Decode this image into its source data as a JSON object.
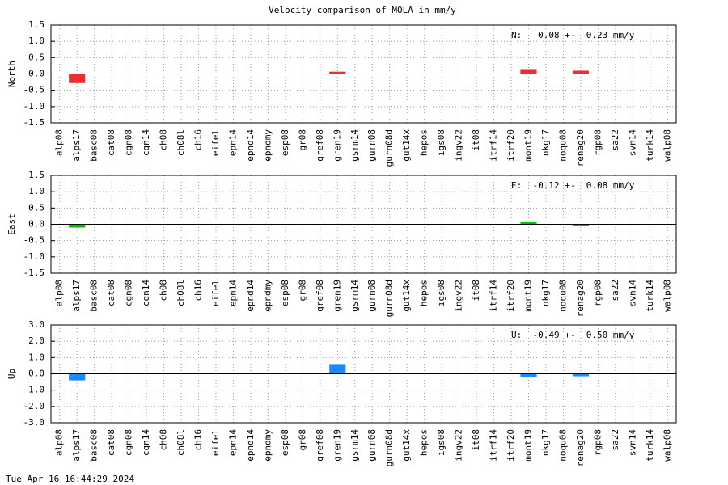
{
  "title": "Velocity comparison of MOLA in mm/y",
  "footer": "Tue Apr 16 16:44:29 2024",
  "chart_data": [
    {
      "type": "bar",
      "y_label": "North",
      "annotation": "N:   0.08 +-  0.23 mm/y",
      "color": "#e83030",
      "grid": true,
      "categories": [
        "alp08",
        "alps17",
        "basc08",
        "cat08",
        "cgn08",
        "cgn14",
        "ch08",
        "ch08l",
        "ch16",
        "eifel",
        "epn14",
        "epnd14",
        "epndmy",
        "esp08",
        "gr08",
        "gref08",
        "gren19",
        "gsrm14",
        "gurn08",
        "gurn08d",
        "gut14x",
        "hepos",
        "igs08",
        "ingv22",
        "it08",
        "itrf14",
        "itrf20",
        "mont19",
        "nkg17",
        "noqu08",
        "renag20",
        "rgp08",
        "sa22",
        "svn14",
        "turk14",
        "walp08"
      ],
      "values": [
        null,
        -0.28,
        null,
        null,
        null,
        null,
        null,
        null,
        null,
        null,
        null,
        null,
        null,
        null,
        null,
        null,
        0.07,
        null,
        null,
        null,
        null,
        null,
        null,
        null,
        null,
        null,
        null,
        0.15,
        null,
        null,
        0.1,
        null,
        null,
        null,
        null,
        null
      ],
      "ylim": [
        -1.5,
        1.5
      ],
      "yticks": [
        1.5,
        {
          "value": 1,
          "label": "1.0"
        },
        0.5,
        {
          "value": 0,
          "label": "0.0"
        },
        -0.5,
        {
          "value": -1,
          "label": "-1.0"
        },
        -1.5
      ]
    },
    {
      "type": "bar",
      "y_label": "East",
      "annotation": "E:  -0.12 +-  0.08 mm/y",
      "color": "#00c000",
      "grid": true,
      "categories": [
        "alp08",
        "alps17",
        "basc08",
        "cat08",
        "cgn08",
        "cgn14",
        "ch08",
        "ch08l",
        "ch16",
        "eifel",
        "epn14",
        "epnd14",
        "epndmy",
        "esp08",
        "gr08",
        "gref08",
        "gren19",
        "gsrm14",
        "gurn08",
        "gurn08d",
        "gut14x",
        "hepos",
        "igs08",
        "ingv22",
        "it08",
        "itrf14",
        "itrf20",
        "mont19",
        "nkg17",
        "noqu08",
        "renag20",
        "rgp08",
        "sa22",
        "svn14",
        "turk14",
        "walp08"
      ],
      "values": [
        null,
        -0.1,
        null,
        null,
        null,
        null,
        null,
        null,
        null,
        null,
        null,
        null,
        null,
        null,
        null,
        null,
        null,
        null,
        null,
        null,
        null,
        null,
        null,
        null,
        null,
        null,
        null,
        0.06,
        null,
        null,
        -0.04,
        null,
        null,
        null,
        null,
        null
      ],
      "ylim": [
        -1.5,
        1.5
      ],
      "yticks": [
        1.5,
        {
          "value": 1,
          "label": "1.0"
        },
        0.5,
        {
          "value": 0,
          "label": "0.0"
        },
        -0.5,
        {
          "value": -1,
          "label": "-1.0"
        },
        -1.5
      ]
    },
    {
      "type": "bar",
      "y_label": "Up",
      "annotation": "U:  -0.49 +-  0.50 mm/y",
      "color": "#1e88ff",
      "grid": true,
      "categories": [
        "alp08",
        "alps17",
        "basc08",
        "cat08",
        "cgn08",
        "cgn14",
        "ch08",
        "ch08l",
        "ch16",
        "eifel",
        "epn14",
        "epnd14",
        "epndmy",
        "esp08",
        "gr08",
        "gref08",
        "gren19",
        "gsrm14",
        "gurn08",
        "gurn08d",
        "gut14x",
        "hepos",
        "igs08",
        "ingv22",
        "it08",
        "itrf14",
        "itrf20",
        "mont19",
        "nkg17",
        "noqu08",
        "renag20",
        "rgp08",
        "sa22",
        "svn14",
        "turk14",
        "walp08"
      ],
      "values": [
        null,
        -0.4,
        null,
        null,
        null,
        null,
        null,
        null,
        null,
        null,
        null,
        null,
        null,
        null,
        null,
        null,
        0.6,
        null,
        null,
        null,
        null,
        null,
        null,
        null,
        null,
        null,
        null,
        -0.2,
        null,
        null,
        -0.15,
        null,
        null,
        null,
        null,
        null
      ],
      "ylim": [
        -3,
        3
      ],
      "yticks": [
        {
          "value": 3,
          "label": "3.0"
        },
        {
          "value": 2,
          "label": "2.0"
        },
        {
          "value": 1,
          "label": "1.0"
        },
        {
          "value": 0,
          "label": "0.0"
        },
        {
          "value": -1,
          "label": "-1.0"
        },
        {
          "value": -2,
          "label": "-2.0"
        },
        {
          "value": -3,
          "label": "-3.0"
        }
      ]
    }
  ]
}
